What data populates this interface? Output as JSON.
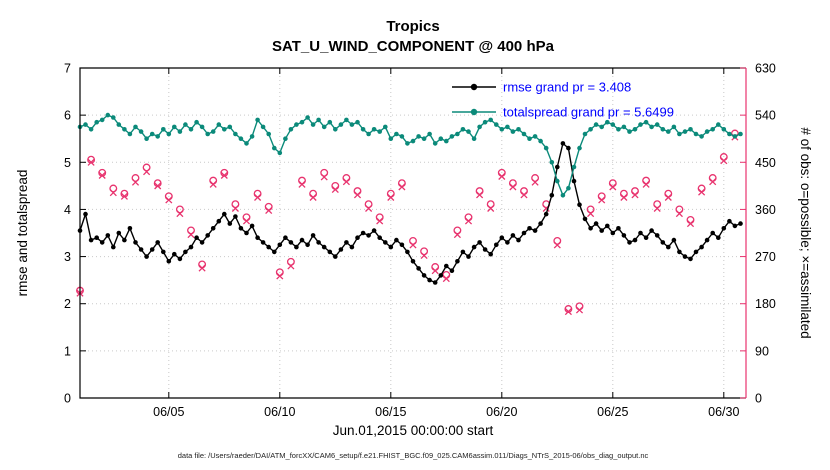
{
  "title": {
    "line1": "Tropics",
    "line2": "SAT_U_WIND_COMPONENT @ 400 hPa"
  },
  "axes": {
    "left_label": "rmse and totalspread",
    "right_label": "# of obs: o=possible; ×=assimilated",
    "x_label": "Jun.01,2015 00:00:00 start",
    "left_ticks": [
      0,
      1,
      2,
      3,
      4,
      5,
      6,
      7
    ],
    "right_ticks": [
      0,
      90,
      180,
      270,
      360,
      450,
      540,
      630
    ],
    "x_tick_labels": [
      "06/05",
      "06/10",
      "06/15",
      "06/20",
      "06/25",
      "06/30"
    ],
    "x_tick_days": [
      5,
      10,
      15,
      20,
      25,
      30
    ],
    "x_range": [
      1,
      31
    ],
    "y_range": [
      0,
      7
    ],
    "y2_range": [
      0,
      630
    ],
    "grid": true
  },
  "legend": [
    {
      "label": "rmse grand pr = 3.408",
      "color": "#000000"
    },
    {
      "label": "totalspread grand pr = 5.6499",
      "color": "#0b8a7a"
    }
  ],
  "colors": {
    "rmse": "#000000",
    "totalspread": "#0b8a7a",
    "obs": "#e8336e",
    "legend_text": "#0000ff"
  },
  "footer": "data file: /Users/raeder/DAI/ATM_forcXX/CAM6_setup/f.e21.FHIST_BGC.f09_025.CAM6assim.011/Diags_NTrS_2015-06/obs_diag_output.nc",
  "chart_data": {
    "type": "line",
    "title": "Tropics — SAT_U_WIND_COMPONENT @ 400 hPa",
    "xlabel": "Jun.01,2015 00:00:00 start",
    "ylabel": "rmse and totalspread",
    "y2label": "# of obs: o=possible; ×=assimilated",
    "xlim": [
      1,
      31
    ],
    "ylim": [
      0,
      7
    ],
    "y2lim": [
      0,
      630
    ],
    "legend_position": "top-right-inside",
    "x_start": 1,
    "x_step": 0.25,
    "series": [
      {
        "name": "rmse",
        "grand_pr": 3.408,
        "color": "#000000",
        "values": [
          3.55,
          3.9,
          3.35,
          3.4,
          3.3,
          3.45,
          3.2,
          3.5,
          3.35,
          3.6,
          3.3,
          3.15,
          3.0,
          3.15,
          3.3,
          3.1,
          2.9,
          3.05,
          2.95,
          3.1,
          3.2,
          3.4,
          3.3,
          3.45,
          3.6,
          3.75,
          3.9,
          3.7,
          3.85,
          3.6,
          3.5,
          3.65,
          3.4,
          3.3,
          3.2,
          3.1,
          3.25,
          3.4,
          3.3,
          3.2,
          3.35,
          3.25,
          3.45,
          3.3,
          3.2,
          3.1,
          3.0,
          3.15,
          3.3,
          3.2,
          3.4,
          3.5,
          3.45,
          3.55,
          3.4,
          3.3,
          3.2,
          3.35,
          3.25,
          3.1,
          2.9,
          2.75,
          2.6,
          2.5,
          2.45,
          2.6,
          2.8,
          2.7,
          2.9,
          3.1,
          3.0,
          3.2,
          3.3,
          3.15,
          3.05,
          3.25,
          3.4,
          3.3,
          3.45,
          3.35,
          3.5,
          3.6,
          3.55,
          3.7,
          3.9,
          4.3,
          4.9,
          5.4,
          5.3,
          4.6,
          4.1,
          3.8,
          3.6,
          3.7,
          3.55,
          3.65,
          3.5,
          3.6,
          3.45,
          3.3,
          3.35,
          3.5,
          3.4,
          3.55,
          3.45,
          3.3,
          3.2,
          3.35,
          3.1,
          3.0,
          2.95,
          3.1,
          3.2,
          3.35,
          3.5,
          3.4,
          3.6,
          3.75,
          3.65,
          3.7
        ]
      },
      {
        "name": "totalspread",
        "grand_pr": 5.6499,
        "color": "#0b8a7a",
        "values": [
          5.75,
          5.8,
          5.7,
          5.85,
          5.9,
          6.0,
          5.95,
          5.8,
          5.7,
          5.6,
          5.75,
          5.65,
          5.5,
          5.6,
          5.55,
          5.7,
          5.6,
          5.75,
          5.65,
          5.8,
          5.7,
          5.85,
          5.75,
          5.6,
          5.65,
          5.8,
          5.7,
          5.75,
          5.6,
          5.5,
          5.4,
          5.55,
          5.9,
          5.75,
          5.6,
          5.3,
          5.2,
          5.5,
          5.7,
          5.8,
          5.85,
          5.95,
          5.8,
          5.9,
          5.75,
          5.85,
          5.7,
          5.8,
          5.9,
          5.8,
          5.85,
          5.7,
          5.6,
          5.7,
          5.65,
          5.75,
          5.5,
          5.6,
          5.55,
          5.4,
          5.45,
          5.55,
          5.5,
          5.6,
          5.4,
          5.5,
          5.45,
          5.55,
          5.6,
          5.7,
          5.65,
          5.5,
          5.75,
          5.85,
          5.9,
          5.8,
          5.7,
          5.75,
          5.65,
          5.7,
          5.6,
          5.5,
          5.55,
          5.45,
          5.3,
          5.0,
          4.6,
          4.3,
          4.45,
          4.9,
          5.3,
          5.6,
          5.7,
          5.8,
          5.75,
          5.85,
          5.8,
          5.7,
          5.75,
          5.65,
          5.7,
          5.8,
          5.85,
          5.75,
          5.8,
          5.7,
          5.65,
          5.75,
          5.6,
          5.65,
          5.7,
          5.6,
          5.55,
          5.65,
          5.7,
          5.8,
          5.7,
          5.6,
          5.55,
          5.6
        ]
      }
    ],
    "obs": {
      "axis": "right",
      "color": "#e8336e",
      "x_start": 1,
      "x_step": 0.5,
      "possible": [
        205,
        455,
        430,
        400,
        390,
        420,
        440,
        410,
        385,
        360,
        320,
        255,
        415,
        430,
        370,
        345,
        390,
        365,
        240,
        260,
        415,
        390,
        430,
        405,
        420,
        395,
        370,
        345,
        390,
        410,
        300,
        280,
        250,
        235,
        320,
        345,
        395,
        370,
        430,
        410,
        395,
        420,
        370,
        300,
        170,
        175,
        360,
        385,
        410,
        390,
        395,
        415,
        370,
        390,
        360,
        340,
        400,
        420,
        460,
        505
      ],
      "assimilated": [
        200,
        450,
        425,
        392,
        385,
        412,
        432,
        405,
        378,
        352,
        312,
        248,
        408,
        425,
        362,
        338,
        383,
        358,
        233,
        252,
        408,
        383,
        422,
        398,
        413,
        388,
        362,
        338,
        383,
        403,
        292,
        272,
        243,
        228,
        312,
        338,
        388,
        362,
        423,
        403,
        388,
        412,
        362,
        292,
        165,
        168,
        352,
        378,
        403,
        383,
        388,
        408,
        362,
        383,
        352,
        333,
        393,
        413,
        453,
        498
      ]
    }
  }
}
